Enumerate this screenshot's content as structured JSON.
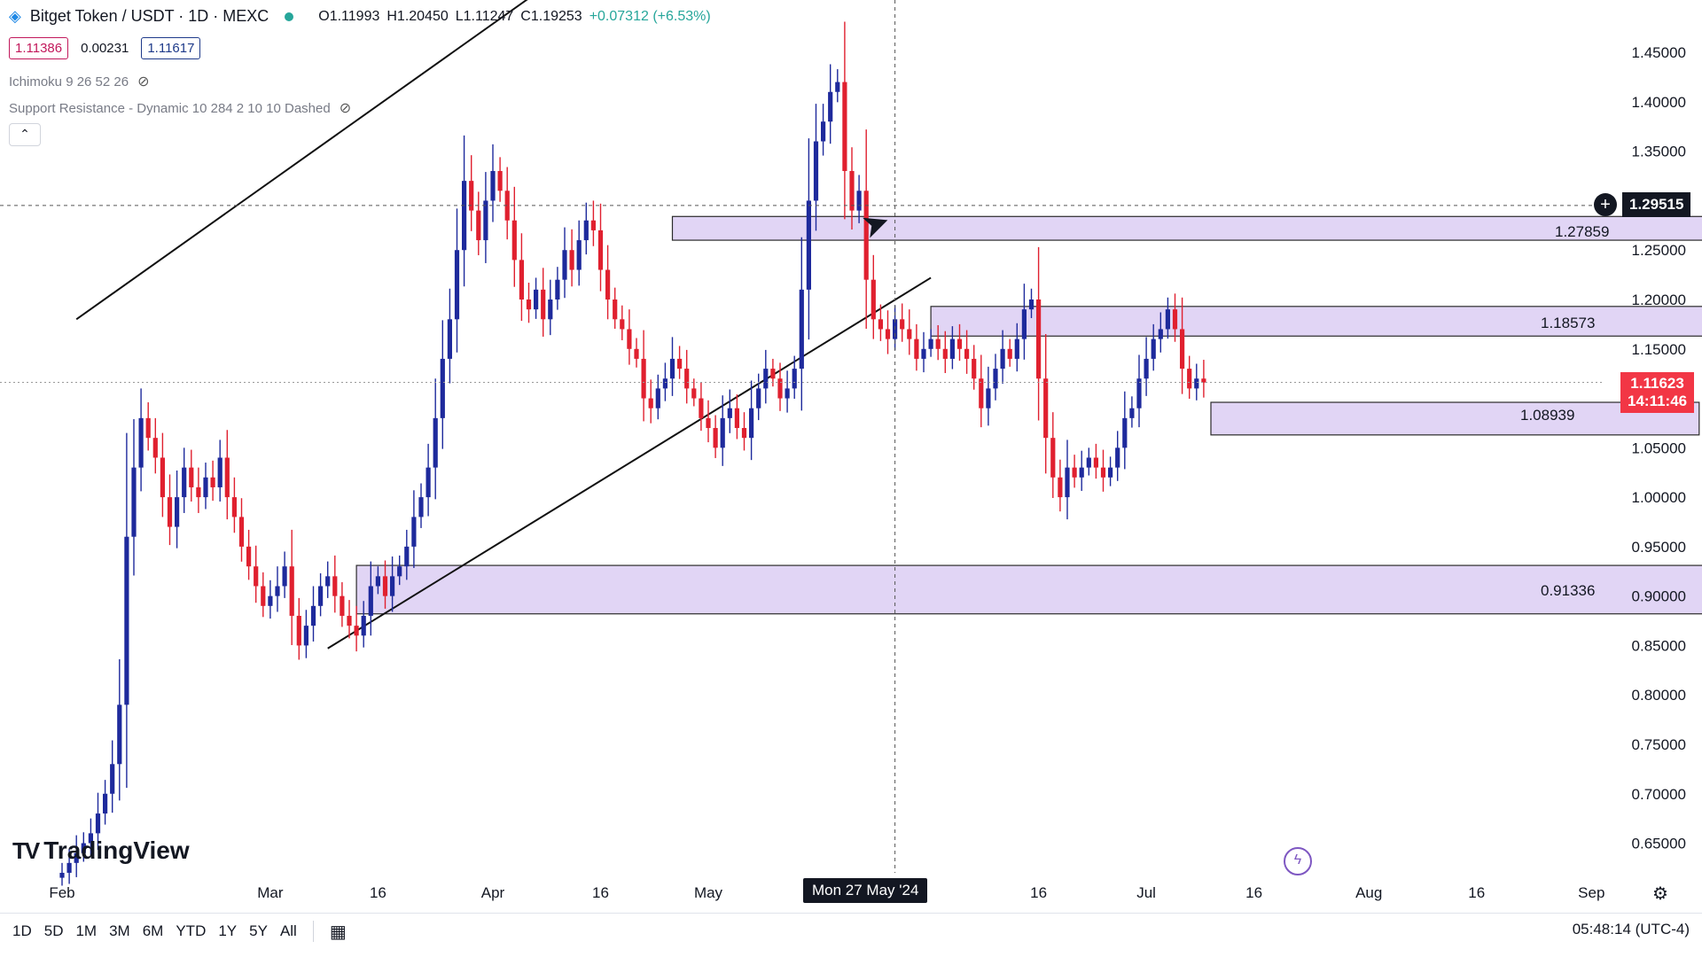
{
  "header": {
    "symbol": "Bitget Token / USDT · 1D · MEXC",
    "open": "O1.11993",
    "high": "H1.20450",
    "low": "L1.11247",
    "close": "C1.19253",
    "change": "+0.07312 (+6.53%)",
    "sell_price": "1.11386",
    "spread": "0.00231",
    "buy_price": "1.11617"
  },
  "indicators": {
    "ichimoku": "Ichimoku 9 26 52 26",
    "support_resistance": "Support Resistance - Dynamic 10 284 2 10 10 Dashed"
  },
  "colors": {
    "up": "#1e2a9c",
    "down": "#e0202f",
    "zone_fill": "#e1d5f5",
    "zone_border": "#2b2b2b",
    "last_price_bg": "#f23645"
  },
  "crosshair": {
    "date_label": "Mon 27 May '24",
    "price_label": "1.29515"
  },
  "last_price": {
    "price": "1.11623",
    "countdown": "14:11:46"
  },
  "zones": [
    {
      "label": "1.27859",
      "top": 1.284,
      "bottom": 1.26,
      "start": 85,
      "end": 232
    },
    {
      "label": "1.18573",
      "top": 1.193,
      "bottom": 1.163,
      "start": 121,
      "end": 231
    },
    {
      "label": "1.08939",
      "top": 1.096,
      "bottom": 1.063,
      "start": 160,
      "end": 228
    },
    {
      "label": "0.91336",
      "top": 0.931,
      "bottom": 0.882,
      "start": 41,
      "end": 232
    }
  ],
  "trendlines": [
    {
      "x1": 2,
      "y1": 1.18,
      "x2": 67,
      "y2": 1.515
    },
    {
      "x1": 37,
      "y1": 0.847,
      "x2": 121,
      "y2": 1.222
    }
  ],
  "branding": "TradingView",
  "bottom_bar": {
    "ranges": [
      "1D",
      "5D",
      "1M",
      "3M",
      "6M",
      "YTD",
      "1Y",
      "5Y",
      "All"
    ],
    "clock": "05:48:14 (UTC-4)"
  },
  "chart_data": {
    "type": "candlestick",
    "title": "Bitget Token / USDT · 1D · MEXC",
    "y_ticks": [
      "1.45000",
      "1.40000",
      "1.35000",
      "1.30000",
      "1.25000",
      "1.20000",
      "1.15000",
      "1.10000",
      "1.05000",
      "1.00000",
      "0.95000",
      "0.90000",
      "0.85000",
      "0.80000",
      "0.75000",
      "0.70000",
      "0.65000"
    ],
    "x_ticks": [
      {
        "label": "Feb",
        "day": 0
      },
      {
        "label": "Mar",
        "day": 29
      },
      {
        "label": "16",
        "day": 44
      },
      {
        "label": "Apr",
        "day": 60
      },
      {
        "label": "16",
        "day": 75
      },
      {
        "label": "May",
        "day": 90
      },
      {
        "label": "16",
        "day": 105
      },
      {
        "label": "16",
        "day": 136
      },
      {
        "label": "Jul",
        "day": 151
      },
      {
        "label": "16",
        "day": 166
      },
      {
        "label": "Aug",
        "day": 182
      },
      {
        "label": "16",
        "day": 197
      },
      {
        "label": "Sep",
        "day": 213
      }
    ],
    "ylim": [
      0.64,
      1.5
    ],
    "grid": false,
    "start_date": "2024-02-01",
    "closes": [
      0.62,
      0.63,
      0.64,
      0.65,
      0.66,
      0.68,
      0.7,
      0.73,
      0.79,
      0.96,
      1.03,
      1.08,
      1.06,
      1.04,
      1.0,
      0.97,
      1.0,
      1.03,
      1.01,
      1.0,
      1.02,
      1.01,
      1.04,
      1.0,
      0.98,
      0.95,
      0.93,
      0.91,
      0.89,
      0.9,
      0.91,
      0.93,
      0.88,
      0.85,
      0.87,
      0.89,
      0.91,
      0.92,
      0.9,
      0.88,
      0.87,
      0.86,
      0.88,
      0.91,
      0.92,
      0.9,
      0.92,
      0.93,
      0.95,
      0.98,
      1.0,
      1.03,
      1.08,
      1.14,
      1.18,
      1.25,
      1.32,
      1.29,
      1.26,
      1.3,
      1.33,
      1.31,
      1.28,
      1.24,
      1.2,
      1.19,
      1.21,
      1.18,
      1.2,
      1.22,
      1.25,
      1.23,
      1.26,
      1.28,
      1.27,
      1.23,
      1.2,
      1.18,
      1.17,
      1.15,
      1.14,
      1.1,
      1.09,
      1.11,
      1.12,
      1.14,
      1.13,
      1.11,
      1.1,
      1.08,
      1.07,
      1.05,
      1.08,
      1.09,
      1.07,
      1.06,
      1.09,
      1.11,
      1.13,
      1.12,
      1.1,
      1.11,
      1.13,
      1.21,
      1.3,
      1.36,
      1.38,
      1.41,
      1.42,
      1.33,
      1.29,
      1.31,
      1.22,
      1.18,
      1.17,
      1.16,
      1.18,
      1.17,
      1.16,
      1.14,
      1.15,
      1.16,
      1.15,
      1.14,
      1.16,
      1.15,
      1.14,
      1.12,
      1.09,
      1.11,
      1.13,
      1.15,
      1.14,
      1.16,
      1.19,
      1.2,
      1.12,
      1.06,
      1.02,
      1.0,
      1.03,
      1.02,
      1.03,
      1.04,
      1.03,
      1.02,
      1.03,
      1.05,
      1.08,
      1.09,
      1.12,
      1.14,
      1.16,
      1.17,
      1.19,
      1.17,
      1.13,
      1.11,
      1.12,
      1.116
    ]
  }
}
